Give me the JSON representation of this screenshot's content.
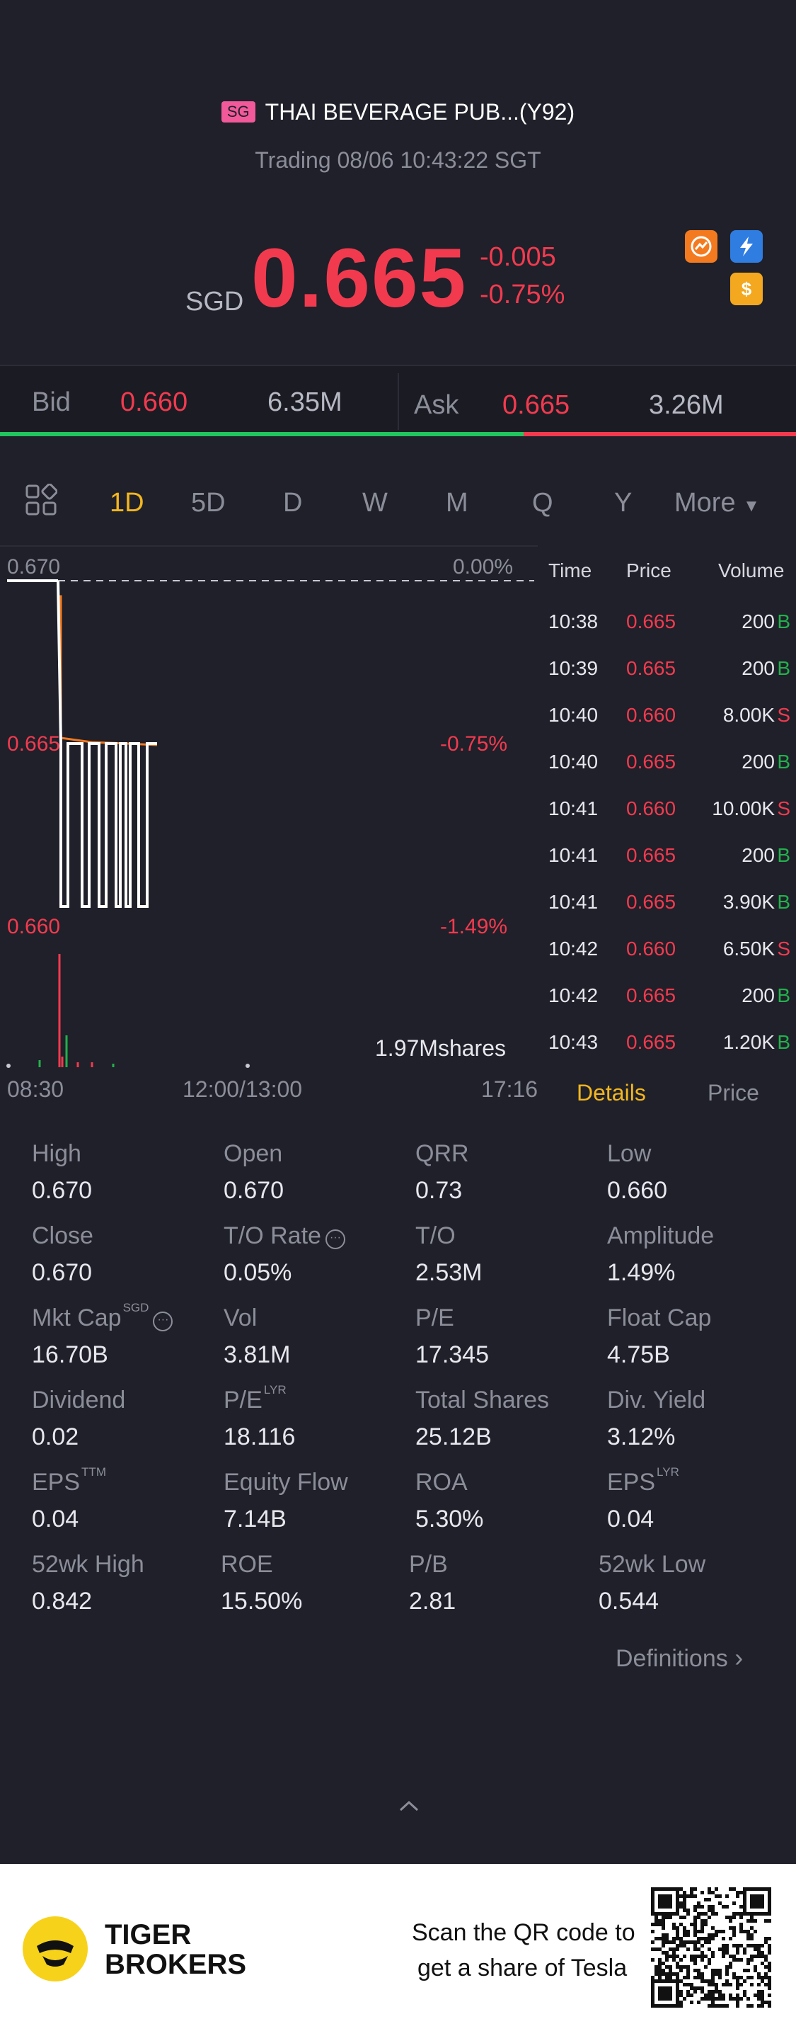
{
  "header": {
    "market_badge": "SG",
    "title": "THAI BEVERAGE PUB...(Y92)",
    "status": "Trading 08/06 10:43:22 SGT",
    "currency": "SGD",
    "price": "0.665",
    "change": "-0.005",
    "change_pct": "-0.75%"
  },
  "icons": {
    "icon1": "chart-icon",
    "icon2": "lightning-icon",
    "icon3": "dollar-icon"
  },
  "bidask": {
    "bid_label": "Bid",
    "bid_price": "0.660",
    "bid_size": "6.35M",
    "ask_label": "Ask",
    "ask_price": "0.665",
    "ask_size": "3.26M"
  },
  "tabs": {
    "t1d": "1D",
    "t5d": "5D",
    "td": "D",
    "tw": "W",
    "tm": "M",
    "tq": "Q",
    "ty": "Y",
    "more": "More"
  },
  "chart": {
    "y_top": "0.670",
    "y_top_pct": "0.00%",
    "y_mid": "0.665",
    "y_mid_pct": "-0.75%",
    "y_bot": "0.660",
    "y_bot_pct": "-1.49%",
    "volume_label": "1.97Mshares",
    "x_start": "08:30",
    "x_mid": "12:00/13:00",
    "x_end": "17:16"
  },
  "ticks": {
    "head_time": "Time",
    "head_price": "Price",
    "head_volume": "Volume",
    "rows": [
      {
        "time": "10:38",
        "price": "0.665",
        "vol": "200",
        "side": "B"
      },
      {
        "time": "10:39",
        "price": "0.665",
        "vol": "200",
        "side": "B"
      },
      {
        "time": "10:40",
        "price": "0.660",
        "vol": "8.00K",
        "side": "S"
      },
      {
        "time": "10:40",
        "price": "0.665",
        "vol": "200",
        "side": "B"
      },
      {
        "time": "10:41",
        "price": "0.660",
        "vol": "10.00K",
        "side": "S"
      },
      {
        "time": "10:41",
        "price": "0.665",
        "vol": "200",
        "side": "B"
      },
      {
        "time": "10:41",
        "price": "0.665",
        "vol": "3.90K",
        "side": "B"
      },
      {
        "time": "10:42",
        "price": "0.660",
        "vol": "6.50K",
        "side": "S"
      },
      {
        "time": "10:42",
        "price": "0.665",
        "vol": "200",
        "side": "B"
      },
      {
        "time": "10:43",
        "price": "0.665",
        "vol": "1.20K",
        "side": "B"
      }
    ]
  },
  "detail_tabs": {
    "details": "Details",
    "price": "Price"
  },
  "stats": [
    {
      "label": "High",
      "value": "0.670"
    },
    {
      "label": "Open",
      "value": "0.670"
    },
    {
      "label": "QRR",
      "value": "0.73"
    },
    {
      "label": "Low",
      "value": "0.660"
    },
    {
      "label": "Close",
      "value": "0.670"
    },
    {
      "label": "T/O Rate",
      "value": "0.05%"
    },
    {
      "label": "T/O",
      "value": "2.53M"
    },
    {
      "label": "Amplitude",
      "value": "1.49%"
    },
    {
      "label": "Mkt Cap",
      "sup": "SGD",
      "value": "16.70B"
    },
    {
      "label": "Vol",
      "value": "3.81M"
    },
    {
      "label": "P/E",
      "value": "17.345"
    },
    {
      "label": "Float Cap",
      "value": "4.75B"
    },
    {
      "label": "Dividend",
      "value": "0.02"
    },
    {
      "label": "P/E",
      "sup": "LYR",
      "value": "18.116"
    },
    {
      "label": "Total Shares",
      "value": "25.12B"
    },
    {
      "label": "Div. Yield",
      "value": "3.12%"
    },
    {
      "label": "EPS",
      "sup": "TTM",
      "value": "0.04"
    },
    {
      "label": "Equity Flow",
      "value": "7.14B"
    },
    {
      "label": "ROA",
      "value": "5.30%"
    },
    {
      "label": "EPS",
      "sup": "LYR",
      "value": "0.04"
    },
    {
      "label": "52wk High",
      "value": "0.842"
    },
    {
      "label": "ROE",
      "value": "15.50%"
    },
    {
      "label": "P/B",
      "value": "2.81"
    },
    {
      "label": "52wk Low",
      "value": "0.544"
    }
  ],
  "definitions": "Definitions",
  "footer": {
    "brand_line1": "TIGER",
    "brand_line2": "BROKERS",
    "cta_line1": "Scan the QR code to",
    "cta_line2": "get a share of Tesla"
  },
  "colors": {
    "background": "#1f2029",
    "down": "#f23a4f",
    "up": "#22b14c",
    "accent": "#f3b61f"
  }
}
